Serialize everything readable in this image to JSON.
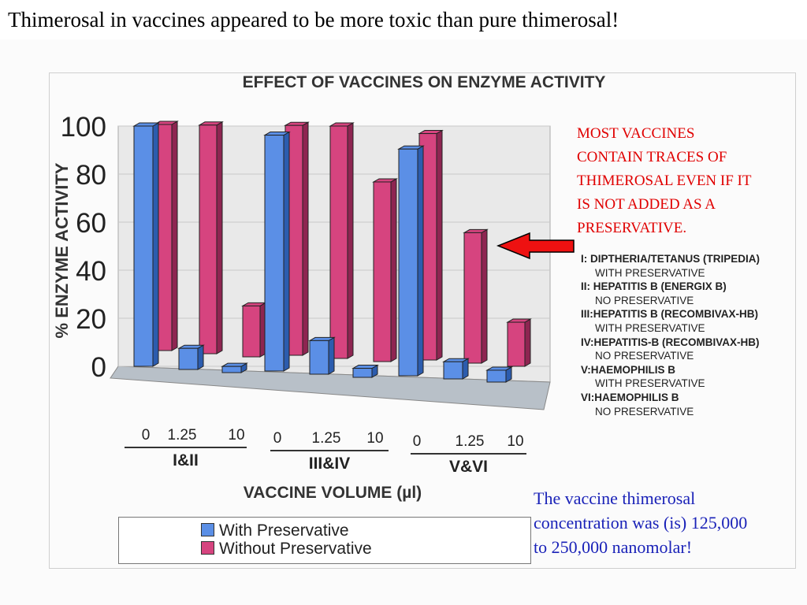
{
  "slide_title": "Thimerosal in vaccines appeared to be more toxic than pure thimerosal!",
  "red_note": [
    "MOST VACCINES",
    "CONTAIN TRACES OF",
    "THIMEROSAL EVEN IF IT",
    "IS NOT ADDED AS A",
    "PRESERVATIVE."
  ],
  "blue_note": [
    "The vaccine thimerosal",
    "concentration was (is) 125,000",
    "to 250,000 nanomolar!"
  ],
  "vaccine_key": [
    {
      "text": "I:  DIPTHERIA/TETANUS (TRIPEDIA)",
      "sub": "WITH PRESERVATIVE"
    },
    {
      "text": "II: HEPATITIS B (ENERGIX B)",
      "sub": "NO PRESERVATIVE"
    },
    {
      "text": "III:HEPATITIS B (RECOMBIVAX-HB)",
      "sub": "WITH PRESERVATIVE"
    },
    {
      "text": "IV:HEPATITIS-B (RECOMBIVAX-HB)",
      "sub": "NO PRESERVATIVE"
    },
    {
      "text": "V:HAEMOPHILIS B",
      "sub": "WITH PRESERVATIVE"
    },
    {
      "text": "VI:HAEMOPHILIS B",
      "sub": "NO PRESERVATIVE"
    }
  ],
  "colors": {
    "with": "#5b8fe6",
    "with_dark": "#2c5cae",
    "without": "#d6447f",
    "without_dark": "#8e2551",
    "red_text": "#e00000",
    "blue_text": "#1a22b8",
    "arrow": "#ee1111"
  },
  "chart_data": {
    "type": "bar",
    "title": "EFFECT OF VACCINES ON ENZYME ACTIVITY",
    "ylabel": "% ENZYME ACTIVITY",
    "xlabel": "VACCINE VOLUME (µl)",
    "ylim": [
      0,
      100
    ],
    "yticks": [
      "0",
      "20",
      "40",
      "60",
      "80",
      "100"
    ],
    "groups": [
      {
        "label": "I&II",
        "volumes": [
          "0",
          "1.25",
          "10"
        ]
      },
      {
        "label": "III&IV",
        "volumes": [
          "0",
          "1.25",
          "10"
        ]
      },
      {
        "label": "V&VI",
        "volumes": [
          "0",
          "1.25",
          "10"
        ]
      }
    ],
    "series": [
      {
        "name": "With Preservative",
        "values": [
          100,
          8,
          1,
          97,
          12,
          1,
          92,
          4,
          1
        ]
      },
      {
        "name": "Without Preservative",
        "values": [
          100,
          100,
          25,
          100,
          100,
          77,
          97,
          56,
          19
        ]
      }
    ],
    "legend": "bottom-left"
  }
}
